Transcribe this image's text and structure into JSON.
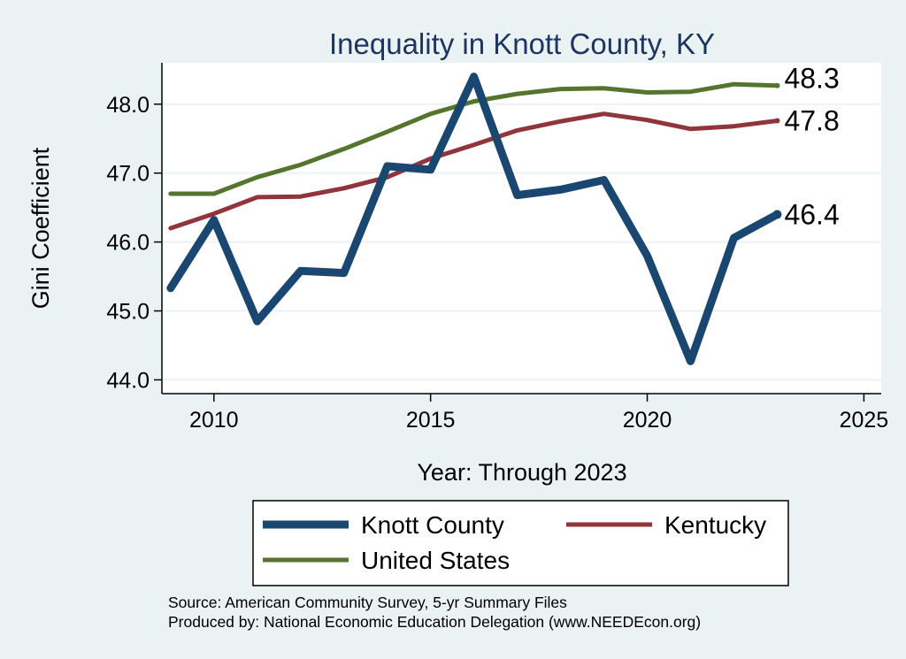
{
  "chart_data": {
    "type": "line",
    "title": "Inequality in Knott County, KY",
    "xlabel": "Year: Through 2023",
    "ylabel": "Gini Coefficient",
    "x": [
      2009,
      2010,
      2011,
      2012,
      2013,
      2014,
      2015,
      2016,
      2017,
      2018,
      2019,
      2020,
      2021,
      2022,
      2023
    ],
    "xlim": [
      2008.8,
      2025.4
    ],
    "ylim": [
      43.8,
      48.6
    ],
    "xticks": [
      2010,
      2015,
      2020,
      2025
    ],
    "yticks": [
      44.0,
      45.0,
      46.0,
      47.0,
      48.0
    ],
    "xtick_labels": [
      "2010",
      "2015",
      "2020",
      "2025"
    ],
    "ytick_labels": [
      "44.0",
      "45.0",
      "46.0",
      "47.0",
      "48.0"
    ],
    "grid": true,
    "legend_position": "bottom",
    "series": [
      {
        "name": "Knott County",
        "color": "#1a476f",
        "values": [
          45.33,
          46.32,
          44.85,
          45.58,
          45.55,
          47.1,
          47.05,
          48.4,
          46.68,
          46.76,
          46.9,
          45.8,
          44.27,
          46.06,
          46.4
        ],
        "end_label": "46.4"
      },
      {
        "name": "Kentucky",
        "color": "#90353b",
        "values": [
          46.2,
          46.41,
          46.65,
          46.66,
          46.78,
          46.94,
          47.21,
          47.41,
          47.62,
          47.75,
          47.86,
          47.77,
          47.64,
          47.68,
          47.76
        ],
        "end_label": "47.8"
      },
      {
        "name": "United States",
        "color": "#55752f",
        "values": [
          46.7,
          46.7,
          46.94,
          47.12,
          47.35,
          47.6,
          47.86,
          48.04,
          48.15,
          48.22,
          48.23,
          48.17,
          48.18,
          48.29,
          48.27
        ],
        "end_label": "48.3"
      }
    ]
  },
  "footer": {
    "source": "Source: American Community Survey, 5-yr Summary Files",
    "produced_by": "Produced by: National Economic Education Delegation (www.NEEDEcon.org)"
  }
}
